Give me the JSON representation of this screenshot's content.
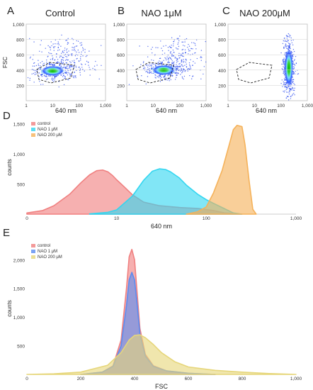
{
  "figure": {
    "panels": {
      "A": {
        "letter": "A",
        "title": "Control"
      },
      "B": {
        "letter": "B",
        "title": "NAO 1μM"
      },
      "C": {
        "letter": "C",
        "title": "NAO 200μM"
      },
      "D": {
        "letter": "D"
      },
      "E": {
        "letter": "E"
      }
    },
    "scatter_ylabel": "FSC",
    "scatter_xlabel": "640 nm"
  },
  "colors": {
    "control": "#f08080",
    "nao1": "#33d6f0",
    "nao200": "#f5b25a"
  },
  "chart_data": [
    {
      "id": "A",
      "type": "scatter",
      "title": "Control",
      "xlabel": "640 nm",
      "ylabel": "FSC",
      "xscale": "log",
      "x_ticks": [
        "1",
        "10",
        "100",
        "1,000"
      ],
      "y_ticks": [
        "200",
        "400",
        "600",
        "800",
        "1,000"
      ],
      "ylim": [
        0,
        1000
      ],
      "population_center": {
        "x": 10,
        "y": 390
      },
      "gate": true
    },
    {
      "id": "B",
      "type": "scatter",
      "title": "NAO 1μM",
      "xlabel": "640 nm",
      "ylabel": "FSC",
      "xscale": "log",
      "x_ticks": [
        "1",
        "10",
        "100",
        "1,000"
      ],
      "y_ticks": [
        "200",
        "400",
        "600",
        "800",
        "1,000"
      ],
      "ylim": [
        0,
        1000
      ],
      "population_center": {
        "x": 25,
        "y": 400
      },
      "gate": true
    },
    {
      "id": "C",
      "type": "scatter",
      "title": "NAO 200μM",
      "xlabel": "640 nm",
      "ylabel": "FSC",
      "xscale": "log",
      "x_ticks": [
        "1",
        "10",
        "100",
        "1,000"
      ],
      "y_ticks": [
        "200",
        "400",
        "600",
        "800",
        "1,000"
      ],
      "ylim": [
        0,
        1000
      ],
      "population_center": {
        "x": 200,
        "y": 430
      },
      "gate": true
    },
    {
      "id": "D",
      "type": "area",
      "xlabel": "640 nm",
      "ylabel": "counts",
      "xscale": "log",
      "x_ticks": [
        "0",
        "10",
        "100",
        "1,000"
      ],
      "y_ticks": [
        "500",
        "1,000",
        "1,500"
      ],
      "ylim": [
        0,
        1550
      ],
      "legend": [
        "control",
        "NAO 1 μM",
        "NAO 200 μM"
      ],
      "legend_position": "top-left",
      "series": [
        {
          "name": "control",
          "color": "#f08080",
          "x": [
            1,
            1.5,
            2,
            3,
            4,
            5,
            6,
            7,
            8,
            9,
            10,
            12,
            15,
            20,
            30,
            50,
            80,
            120,
            160,
            250
          ],
          "y": [
            20,
            60,
            140,
            330,
            520,
            650,
            720,
            730,
            700,
            640,
            570,
            460,
            320,
            200,
            140,
            110,
            95,
            60,
            20,
            0
          ]
        },
        {
          "name": "NAO 1 μM",
          "color": "#33d6f0",
          "x": [
            5,
            8,
            10,
            15,
            20,
            25,
            30,
            35,
            40,
            50,
            60,
            80,
            100,
            120,
            150,
            200,
            250
          ],
          "y": [
            5,
            30,
            70,
            300,
            560,
            710,
            750,
            740,
            700,
            600,
            480,
            330,
            240,
            180,
            110,
            20,
            0
          ]
        },
        {
          "name": "NAO 200 μM",
          "color": "#f5b25a",
          "x": [
            60,
            80,
            100,
            120,
            150,
            180,
            200,
            220,
            250,
            270,
            300,
            330,
            360
          ],
          "y": [
            0,
            40,
            120,
            350,
            720,
            1150,
            1400,
            1470,
            1450,
            1150,
            550,
            80,
            0
          ]
        }
      ]
    },
    {
      "id": "E",
      "type": "area",
      "xlabel": "FSC",
      "ylabel": "counts",
      "xlim": [
        0,
        1000
      ],
      "x_ticks": [
        "0",
        "200",
        "400",
        "600",
        "800",
        "1,000"
      ],
      "y_ticks": [
        "500",
        "1,000",
        "1,500",
        "2,000"
      ],
      "ylim": [
        0,
        2300
      ],
      "legend": [
        "control",
        "NAO 1 μM",
        "NAO 200 μM"
      ],
      "legend_position": "top-left",
      "series": [
        {
          "name": "control",
          "color": "#f08080",
          "x": [
            200,
            280,
            320,
            350,
            370,
            380,
            390,
            400,
            410,
            420,
            440,
            470,
            520,
            600,
            700
          ],
          "y": [
            0,
            40,
            150,
            600,
            1500,
            2050,
            2180,
            2000,
            1400,
            800,
            350,
            150,
            60,
            20,
            0
          ]
        },
        {
          "name": "NAO 1 μM",
          "color": "#5b8cf0",
          "x": [
            200,
            280,
            320,
            350,
            370,
            380,
            390,
            400,
            410,
            420,
            440,
            470,
            520,
            600,
            700
          ],
          "y": [
            0,
            40,
            140,
            500,
            1200,
            1650,
            1780,
            1650,
            1200,
            700,
            320,
            140,
            60,
            20,
            0
          ]
        },
        {
          "name": "NAO 200 μM",
          "color": "#e6d67a",
          "x": [
            0,
            100,
            200,
            300,
            350,
            380,
            400,
            420,
            440,
            470,
            500,
            550,
            600,
            700,
            800,
            900,
            1000
          ],
          "y": [
            0,
            10,
            40,
            160,
            380,
            600,
            680,
            690,
            640,
            520,
            380,
            220,
            130,
            70,
            40,
            15,
            0
          ]
        }
      ]
    }
  ]
}
